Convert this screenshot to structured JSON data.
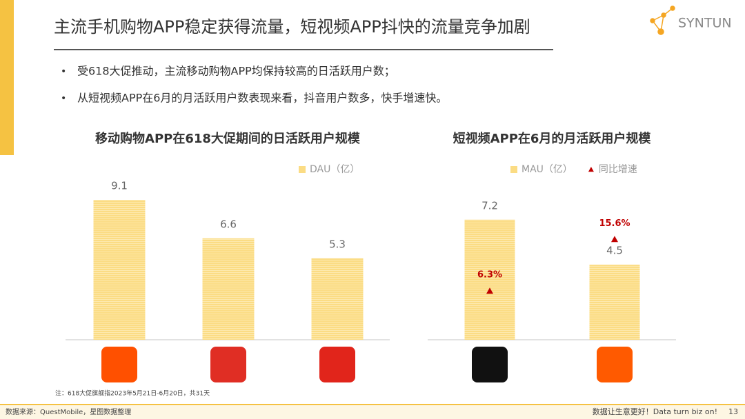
{
  "header": {
    "title": "主流手机购物APP稳定获得流量，短视频APP抖快的流量竞争加剧",
    "logo": "SYNTUN"
  },
  "bullets": [
    "受618大促推动，主流移动购物APP均保持较高的日活跃用户数；",
    "从短视频APP在6月的月活跃用户数表现来看，抖音用户数多，快手增速快。"
  ],
  "chart_data": [
    {
      "type": "bar",
      "title": "移动购物APP在618大促期间的日活跃用户规模",
      "categories": [
        null,
        null,
        null
      ],
      "series": [
        {
          "name": "DAU（亿）",
          "color": "#fbdc84",
          "values": [
            9.1,
            6.6,
            5.3
          ]
        }
      ]
    },
    {
      "type": "bar",
      "title": "短视频APP在6月的月活跃用户规模",
      "categories": [
        null,
        null
      ],
      "series": [
        {
          "name": "MAU（亿）",
          "color": "#fbdc84",
          "values": [
            7.2,
            4.5
          ]
        },
        {
          "name": "同比增速",
          "color": "#c00000",
          "axis": "y2",
          "values": [
            6.3,
            15.6
          ],
          "value_labels": [
            "6.3%",
            "15.6%"
          ]
        }
      ]
    }
  ],
  "note": "注：618大促旗舰指2023年5月21日-6月20日，共31天",
  "footer": {
    "source": "数据来源：QuestMobile，星图数据整理",
    "slogan": "数据让生意更好！Data turn biz on!",
    "page": 13
  }
}
